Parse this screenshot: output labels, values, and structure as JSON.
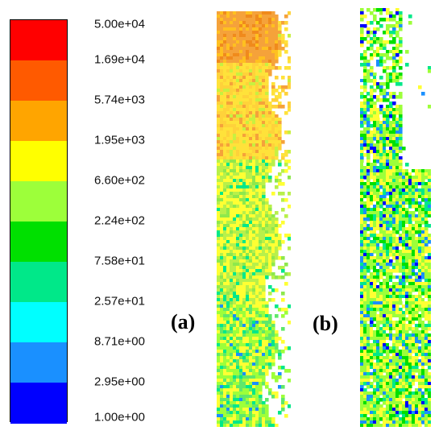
{
  "chart_data": {
    "type": "heatmap",
    "title": "",
    "colorbar": {
      "labels": [
        "5.00e+04",
        "1.69e+04",
        "5.74e+03",
        "1.95e+03",
        "6.60e+02",
        "2.24e+02",
        "7.58e+01",
        "2.57e+01",
        "8.71e+00",
        "2.95e+00",
        "1.00e+00"
      ],
      "levels": [
        50000,
        16900,
        5740,
        1950,
        660,
        224,
        75.8,
        25.7,
        8.71,
        2.95,
        1.0
      ],
      "colors": [
        "#ff0000",
        "#ff5a00",
        "#ffa500",
        "#ffff00",
        "#9dff3a",
        "#00e000",
        "#00e889",
        "#00ffff",
        "#1a90ff",
        "#0000ff"
      ],
      "scale": "log"
    },
    "panels": [
      {
        "label": "(a)",
        "dominant_colors": [
          "#ffa500",
          "#ffff00",
          "#9dff3a",
          "#00e889"
        ]
      },
      {
        "label": "(b)",
        "dominant_colors": [
          "#9dff3a",
          "#ffff00",
          "#00e000",
          "#00e889",
          "#1a90ff",
          "#0000ff"
        ]
      }
    ]
  }
}
